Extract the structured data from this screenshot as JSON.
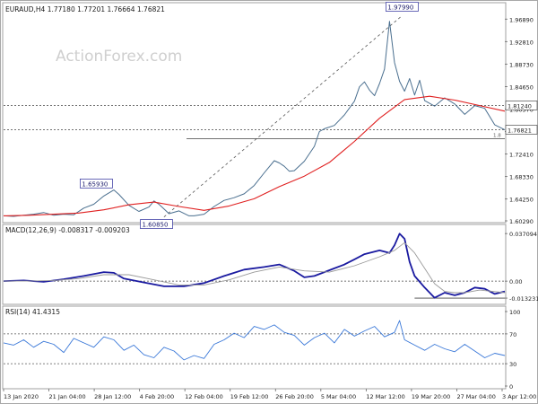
{
  "chart_data": {
    "type": "line",
    "title": "EURAUD,H4 1.77180 1.77201 1.76664 1.76821",
    "watermark": "ActionForex.com",
    "colors": {
      "price": "#4a6f8f",
      "ma": "#e02020",
      "macd": "#1a1aa0",
      "signal": "#9a9a9a",
      "rsi": "#3a78d8",
      "grid": "#b0b0b0",
      "text": "#1a1a1a",
      "watermark": "#cfcfcf"
    },
    "x_labels": [
      "13 Jan 2020",
      "21 Jan 04:00",
      "28 Jan 12:00",
      "4 Feb 20:00",
      "12 Feb 04:00",
      "19 Feb 12:00",
      "26 Feb 20:00",
      "5 Mar 04:00",
      "12 Mar 12:00",
      "19 Mar 20:00",
      "27 Mar 04:00",
      "3 Apr 12:00"
    ],
    "price_panel": {
      "ylim": [
        1.6029,
        1.9954
      ],
      "y_ticks": [
        "1.96890",
        "1.92810",
        "1.88730",
        "1.84650",
        "1.80570",
        "1.76490",
        "1.72410",
        "1.68330",
        "1.64250",
        "1.60290"
      ],
      "y_tick_values": [
        1.9689,
        1.9281,
        1.8873,
        1.8465,
        1.8057,
        1.7649,
        1.7241,
        1.6833,
        1.6425,
        1.6029
      ],
      "series": [
        {
          "kind": "price",
          "x": [
            0.0,
            0.02,
            0.04,
            0.06,
            0.08,
            0.1,
            0.12,
            0.14,
            0.16,
            0.18,
            0.2,
            0.22,
            0.23,
            0.25,
            0.27,
            0.29,
            0.3,
            0.31,
            0.33,
            0.35,
            0.37,
            0.38,
            0.4,
            0.42,
            0.44,
            0.46,
            0.48,
            0.5,
            0.52,
            0.54,
            0.55,
            0.56,
            0.57,
            0.58,
            0.6,
            0.62,
            0.63,
            0.64,
            0.66,
            0.68,
            0.7,
            0.71,
            0.72,
            0.73,
            0.74,
            0.75,
            0.76,
            0.77,
            0.78,
            0.79,
            0.8,
            0.81,
            0.82,
            0.83,
            0.84,
            0.86,
            0.88,
            0.9,
            0.92,
            0.94,
            0.96,
            0.98,
            1.0
          ],
          "y": [
            1.612,
            1.611,
            1.613,
            1.615,
            1.618,
            1.613,
            1.615,
            1.614,
            1.626,
            1.633,
            1.648,
            1.659,
            1.651,
            1.631,
            1.62,
            1.628,
            1.639,
            1.633,
            1.616,
            1.621,
            1.612,
            1.612,
            1.615,
            1.629,
            1.64,
            1.645,
            1.652,
            1.667,
            1.69,
            1.712,
            1.708,
            1.702,
            1.693,
            1.694,
            1.711,
            1.738,
            1.765,
            1.77,
            1.776,
            1.795,
            1.82,
            1.846,
            1.855,
            1.84,
            1.83,
            1.852,
            1.878,
            1.965,
            1.89,
            1.856,
            1.838,
            1.861,
            1.831,
            1.858,
            1.821,
            1.811,
            1.826,
            1.815,
            1.796,
            1.812,
            1.807,
            1.777,
            1.768
          ]
        },
        {
          "kind": "ma",
          "x": [
            0.0,
            0.05,
            0.1,
            0.15,
            0.2,
            0.25,
            0.3,
            0.35,
            0.4,
            0.45,
            0.5,
            0.55,
            0.6,
            0.65,
            0.7,
            0.75,
            0.8,
            0.85,
            0.9,
            0.95,
            1.0
          ],
          "y": [
            1.612,
            1.613,
            1.615,
            1.617,
            1.623,
            1.632,
            1.637,
            1.629,
            1.622,
            1.63,
            1.643,
            1.665,
            1.684,
            1.709,
            1.747,
            1.789,
            1.823,
            1.829,
            1.822,
            1.812,
            1.802
          ]
        }
      ],
      "horizontal_lines": [
        {
          "label": "1.81240",
          "value": 1.8124,
          "style": "dotted"
        },
        {
          "label": "1.76821",
          "value": 1.76821,
          "style": "dotted"
        },
        {
          "label": "",
          "value": 1.7521,
          "style": "solid"
        }
      ],
      "annotations": [
        {
          "label": "1.97990",
          "x": 0.795,
          "y": 1.9799
        },
        {
          "label": "1.65930",
          "x": 0.185,
          "y": 1.6593
        },
        {
          "label": "1.60850",
          "x": 0.305,
          "y": 1.6085
        }
      ],
      "level_tag": "1.8",
      "trendline": {
        "x": [
          0.32,
          0.795
        ],
        "y": [
          1.61,
          1.975
        ]
      }
    },
    "macd_panel": {
      "label": "MACD(12,26,9) -0.008317 -0.009203",
      "ylim": [
        -0.016,
        0.04
      ],
      "y_ticks": [
        "0.037094",
        "0.00",
        "-0.013231"
      ],
      "y_tick_values": [
        0.037094,
        0.0,
        -0.013231
      ],
      "series": [
        {
          "kind": "macd",
          "x": [
            0.0,
            0.04,
            0.08,
            0.12,
            0.16,
            0.2,
            0.22,
            0.24,
            0.28,
            0.32,
            0.36,
            0.4,
            0.44,
            0.48,
            0.52,
            0.55,
            0.58,
            0.6,
            0.62,
            0.64,
            0.66,
            0.68,
            0.7,
            0.72,
            0.75,
            0.77,
            0.78,
            0.79,
            0.8,
            0.81,
            0.82,
            0.84,
            0.86,
            0.88,
            0.9,
            0.92,
            0.94,
            0.96,
            0.98,
            1.0
          ],
          "y": [
            0.0,
            0.0005,
            -0.0005,
            0.0015,
            0.004,
            0.007,
            0.0065,
            0.002,
            -0.001,
            -0.004,
            -0.004,
            -0.0015,
            0.004,
            0.009,
            0.011,
            0.013,
            0.008,
            0.003,
            0.004,
            0.007,
            0.01,
            0.013,
            0.017,
            0.021,
            0.024,
            0.022,
            0.028,
            0.037,
            0.033,
            0.015,
            0.004,
            -0.005,
            -0.013,
            -0.009,
            -0.011,
            -0.009,
            -0.005,
            -0.006,
            -0.01,
            -0.008
          ]
        },
        {
          "kind": "signal",
          "x": [
            0.0,
            0.05,
            0.1,
            0.15,
            0.2,
            0.25,
            0.3,
            0.35,
            0.4,
            0.45,
            0.5,
            0.55,
            0.6,
            0.65,
            0.7,
            0.75,
            0.78,
            0.8,
            0.82,
            0.84,
            0.86,
            0.88,
            0.9,
            0.92,
            0.95,
            1.0
          ],
          "y": [
            0.0,
            0.0,
            0.0005,
            0.002,
            0.005,
            0.005,
            0.001,
            -0.003,
            -0.003,
            0.001,
            0.007,
            0.011,
            0.008,
            0.007,
            0.012,
            0.019,
            0.024,
            0.03,
            0.022,
            0.01,
            -0.002,
            -0.008,
            -0.009,
            -0.009,
            -0.007,
            -0.009
          ]
        }
      ],
      "horizontal_lines": [
        {
          "value": 0.0,
          "style": "dotted"
        },
        {
          "value": -0.013231,
          "style": "solid"
        }
      ]
    },
    "rsi_panel": {
      "label": "RSI(14) 41.4315",
      "ylim": [
        0,
        100
      ],
      "y_ticks": [
        "100",
        "70",
        "30",
        "0"
      ],
      "y_tick_values": [
        100,
        70,
        30,
        0
      ],
      "horizontal_lines": [
        {
          "value": 70,
          "style": "dotted"
        },
        {
          "value": 30,
          "style": "dotted"
        }
      ],
      "series": [
        {
          "kind": "rsi",
          "x": [
            0.0,
            0.02,
            0.04,
            0.06,
            0.08,
            0.1,
            0.12,
            0.14,
            0.16,
            0.18,
            0.2,
            0.22,
            0.24,
            0.26,
            0.28,
            0.3,
            0.32,
            0.34,
            0.36,
            0.38,
            0.4,
            0.42,
            0.44,
            0.46,
            0.48,
            0.5,
            0.52,
            0.54,
            0.56,
            0.58,
            0.6,
            0.62,
            0.64,
            0.66,
            0.68,
            0.7,
            0.72,
            0.74,
            0.76,
            0.78,
            0.79,
            0.8,
            0.82,
            0.84,
            0.86,
            0.88,
            0.9,
            0.92,
            0.94,
            0.96,
            0.98,
            1.0
          ],
          "y": [
            58,
            55,
            62,
            52,
            60,
            56,
            45,
            64,
            58,
            52,
            66,
            62,
            48,
            55,
            42,
            38,
            52,
            47,
            35,
            41,
            37,
            56,
            62,
            71,
            65,
            80,
            76,
            82,
            72,
            68,
            55,
            65,
            71,
            58,
            76,
            67,
            74,
            80,
            66,
            72,
            88,
            62,
            55,
            48,
            56,
            50,
            46,
            56,
            47,
            38,
            44,
            41
          ]
        }
      ]
    }
  }
}
